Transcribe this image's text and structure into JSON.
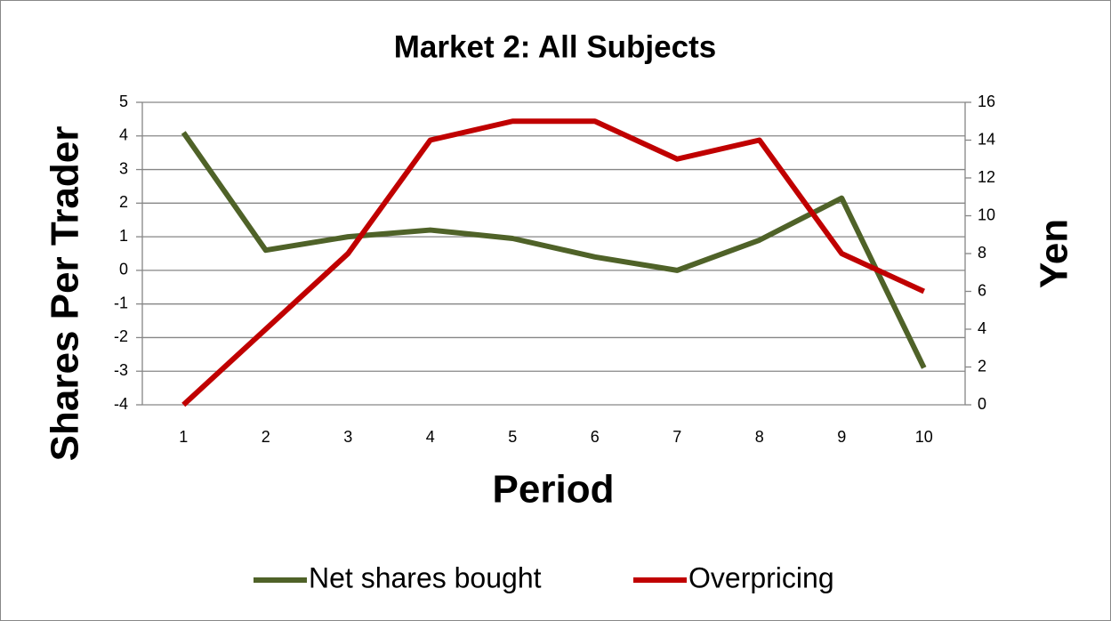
{
  "chart_data": {
    "type": "line",
    "title": "Market 2: All Subjects",
    "x_label": "Period",
    "y_label": "Shares Per Trader",
    "y2_label": "Yen",
    "categories": [
      "1",
      "2",
      "3",
      "4",
      "5",
      "6",
      "7",
      "8",
      "9",
      "10"
    ],
    "series": [
      {
        "name": "Net shares bought",
        "color": "#4f6228",
        "values": [
          4.1,
          0.6,
          1.0,
          1.2,
          0.95,
          0.4,
          0.0,
          0.9,
          2.15,
          -2.9
        ]
      },
      {
        "name": "Overpricing",
        "color": "#c00000",
        "axis": "y2",
        "values": [
          0,
          4,
          8,
          14,
          15,
          15,
          13,
          14,
          8,
          6
        ]
      }
    ],
    "ylim": [
      -4,
      5
    ],
    "yticks": [
      -4,
      -3,
      -2,
      -1,
      0,
      1,
      2,
      3,
      4,
      5
    ],
    "y2lim": [
      0,
      16
    ],
    "y2ticks": [
      0,
      2,
      4,
      6,
      8,
      10,
      12,
      14,
      16
    ],
    "grid": true,
    "legend": "bottom"
  }
}
